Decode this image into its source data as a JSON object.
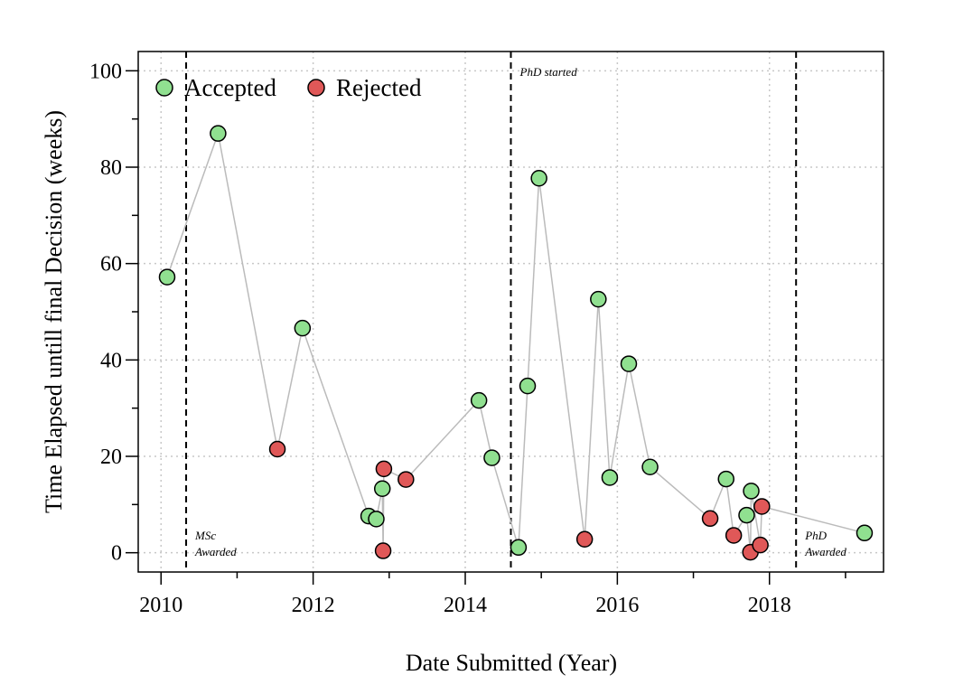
{
  "chart_data": {
    "type": "scatter",
    "title": "",
    "xlabel": "Date Submitted (Year)",
    "ylabel": "Time Elapsed untill final Decision (weeks)",
    "xlim": [
      2009.7,
      2019.5
    ],
    "ylim": [
      -4,
      104
    ],
    "x_ticks": [
      2010,
      2012,
      2014,
      2016,
      2018
    ],
    "x_minor_ticks": [
      2011,
      2013,
      2015,
      2017,
      2019
    ],
    "y_ticks": [
      0,
      20,
      40,
      60,
      80,
      100
    ],
    "y_minor_ticks": [
      10,
      30,
      50,
      70,
      90
    ],
    "grid": true,
    "legend_position": "top-left",
    "connector_color": "#bbbbbb",
    "series": [
      {
        "name": "Accepted",
        "color": "#90e090"
      },
      {
        "name": "Rejected",
        "color": "#e05858"
      }
    ],
    "vlines": [
      {
        "x": 2010.33,
        "label_lines": [
          "MSc",
          "Awarded"
        ],
        "label_position": "bottom"
      },
      {
        "x": 2014.6,
        "label_lines": [
          "PhD started"
        ],
        "label_position": "top"
      },
      {
        "x": 2018.35,
        "label_lines": [
          "PhD",
          "Awarded"
        ],
        "label_position": "bottom"
      }
    ],
    "points": [
      {
        "x": 2010.08,
        "y": 57.2,
        "status": "Accepted"
      },
      {
        "x": 2010.75,
        "y": 87.0,
        "status": "Accepted"
      },
      {
        "x": 2011.53,
        "y": 21.5,
        "status": "Rejected"
      },
      {
        "x": 2011.86,
        "y": 46.6,
        "status": "Accepted"
      },
      {
        "x": 2012.73,
        "y": 7.6,
        "status": "Accepted"
      },
      {
        "x": 2012.83,
        "y": 7.0,
        "status": "Accepted"
      },
      {
        "x": 2012.91,
        "y": 13.3,
        "status": "Accepted"
      },
      {
        "x": 2012.92,
        "y": 0.4,
        "status": "Rejected"
      },
      {
        "x": 2012.93,
        "y": 17.4,
        "status": "Rejected"
      },
      {
        "x": 2013.22,
        "y": 15.2,
        "status": "Rejected"
      },
      {
        "x": 2014.18,
        "y": 31.6,
        "status": "Accepted"
      },
      {
        "x": 2014.35,
        "y": 19.7,
        "status": "Accepted"
      },
      {
        "x": 2014.7,
        "y": 1.1,
        "status": "Accepted"
      },
      {
        "x": 2014.82,
        "y": 34.6,
        "status": "Accepted"
      },
      {
        "x": 2014.97,
        "y": 77.7,
        "status": "Accepted"
      },
      {
        "x": 2015.57,
        "y": 2.8,
        "status": "Rejected"
      },
      {
        "x": 2015.75,
        "y": 52.6,
        "status": "Accepted"
      },
      {
        "x": 2015.9,
        "y": 15.6,
        "status": "Accepted"
      },
      {
        "x": 2016.15,
        "y": 39.2,
        "status": "Accepted"
      },
      {
        "x": 2016.43,
        "y": 17.8,
        "status": "Accepted"
      },
      {
        "x": 2017.22,
        "y": 7.1,
        "status": "Rejected"
      },
      {
        "x": 2017.43,
        "y": 15.3,
        "status": "Accepted"
      },
      {
        "x": 2017.53,
        "y": 3.6,
        "status": "Rejected"
      },
      {
        "x": 2017.7,
        "y": 7.8,
        "status": "Accepted"
      },
      {
        "x": 2017.75,
        "y": 0.1,
        "status": "Rejected"
      },
      {
        "x": 2017.76,
        "y": 12.8,
        "status": "Accepted"
      },
      {
        "x": 2017.88,
        "y": 1.6,
        "status": "Rejected"
      },
      {
        "x": 2017.9,
        "y": 9.6,
        "status": "Rejected"
      },
      {
        "x": 2019.25,
        "y": 4.1,
        "status": "Accepted"
      }
    ]
  }
}
